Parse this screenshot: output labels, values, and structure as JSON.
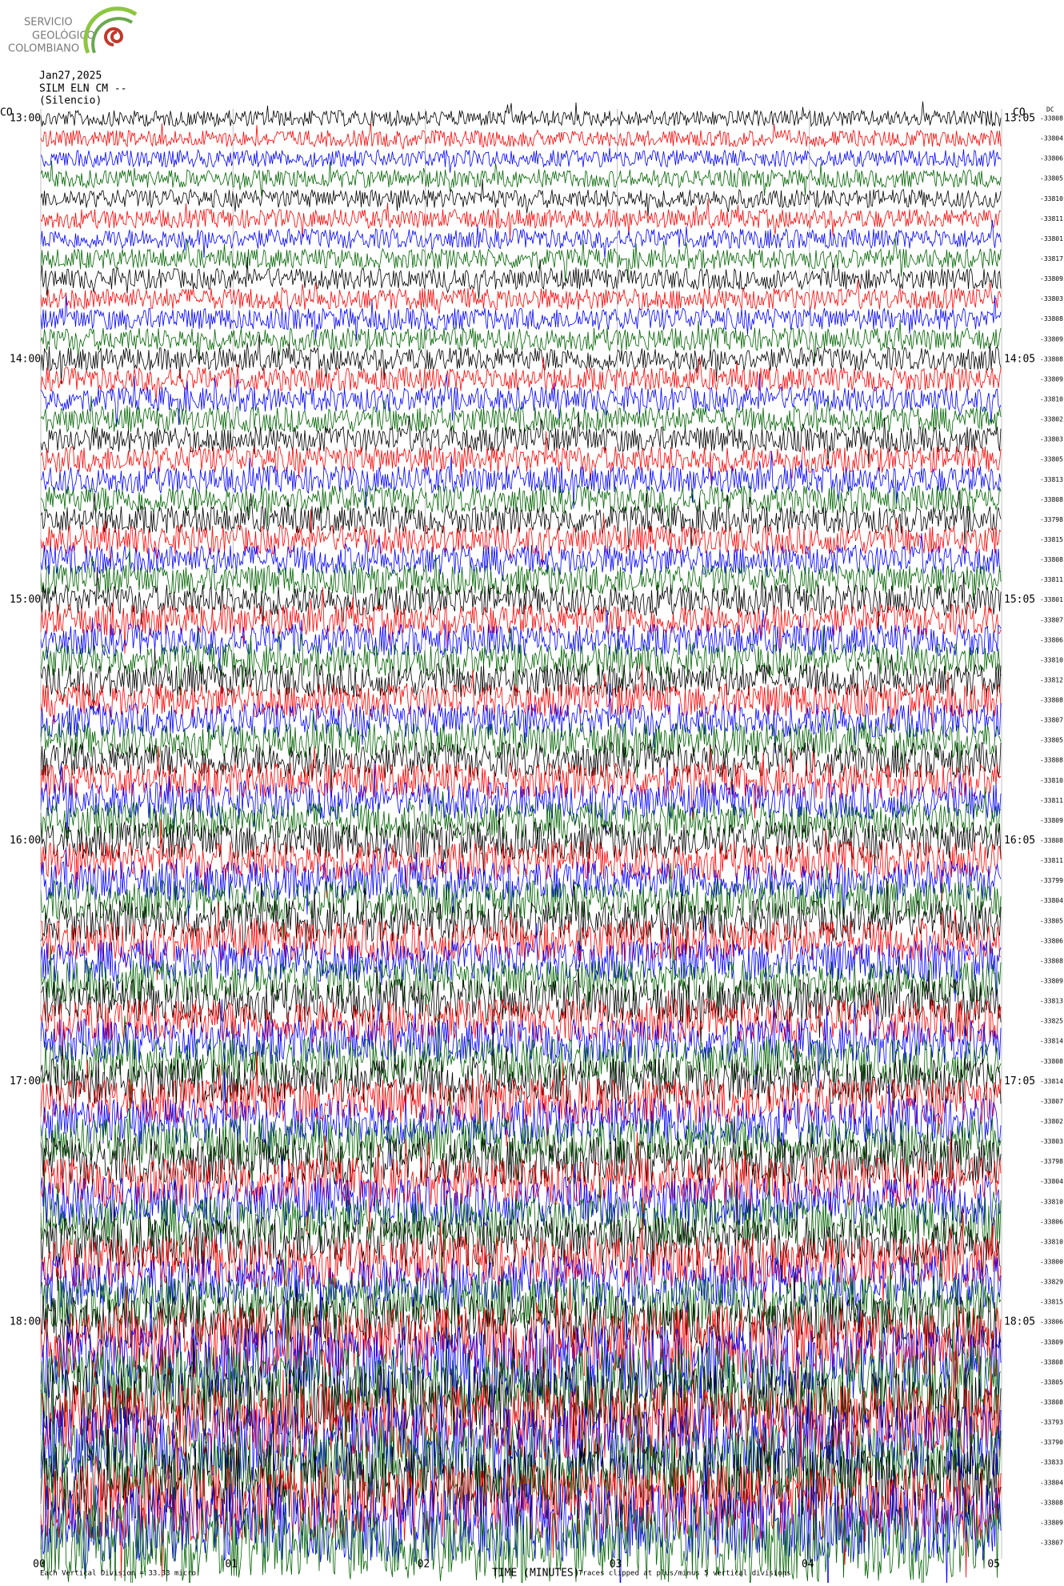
{
  "header": {
    "logo": [
      "SERVICIO",
      "GEOLÓGICO",
      "COLOMBIANO"
    ],
    "date": "Jan27,2025",
    "station": "SILM ELN CM --",
    "site": "(Silencio)",
    "left_corner": "CO",
    "right_corner": "CO",
    "dc_header": "DC"
  },
  "left_times": [
    "13:00",
    "14:00",
    "15:00",
    "16:00",
    "17:00",
    "18:00"
  ],
  "right_times": [
    "13:05",
    "14:05",
    "15:05",
    "16:05",
    "17:05",
    "18:05"
  ],
  "dc_offsets": [
    -33808,
    -33804,
    -33806,
    -33805,
    -33810,
    -33811,
    -33801,
    -33817,
    -33809,
    -33803,
    -33808,
    -33809,
    -33808,
    -33809,
    -33810,
    -33802,
    -33803,
    -33805,
    -33813,
    -33808,
    -33798,
    -33815,
    -33808,
    -33811,
    -33801,
    -33807,
    -33806,
    -33810,
    -33812,
    -33808,
    -33807,
    -33805,
    -33808,
    -33810,
    -33811,
    -33809,
    -33808,
    -33811,
    -33799,
    -33804,
    -33805,
    -33806,
    -33808,
    -33809,
    -33813,
    -33825,
    -33814,
    -33808,
    -33814,
    -33807,
    -33802,
    -33803,
    -33798,
    -33804,
    -33810,
    -33806,
    -33810,
    -33800,
    -33829,
    -33815,
    -33806,
    -33809,
    -33808,
    -33805,
    -33808,
    -33793,
    -33790,
    -33833,
    -33804,
    -33808,
    -33809,
    -33807
  ],
  "x_ticks": [
    "00",
    "01",
    "02",
    "03",
    "04",
    "05"
  ],
  "footer": {
    "division": "Each Vertical Division =   33.33 micro",
    "axis_title": "TIME (MINUTES)",
    "clip_note": "Traces clipped at plus/minus 5 vertical divisions"
  }
}
